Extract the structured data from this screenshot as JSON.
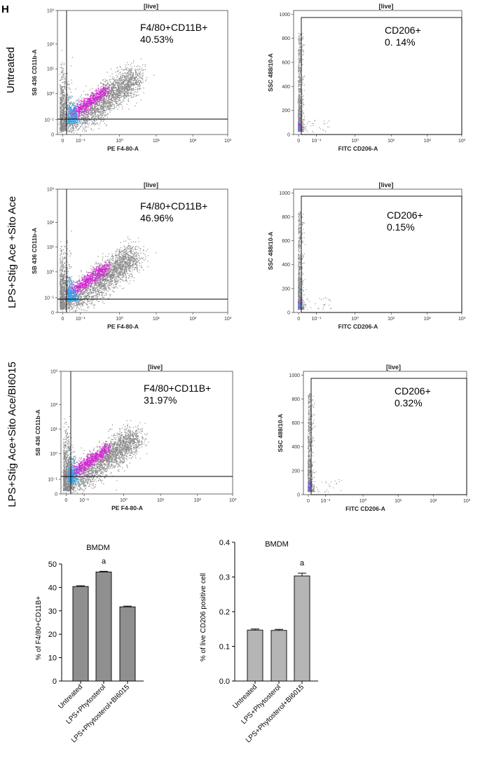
{
  "panel_label": "H",
  "row_labels": [
    "Untreated",
    "LPS+Stig Ace +Sito Ace",
    "LPS+Stig Ace+Sito Ace/BI6015"
  ],
  "flow_plots": [
    {
      "gate_title": "[live]",
      "ylabel": "SB 436 CD11b-A",
      "xlabel": "PE F4-80-A",
      "population": "F4/80+CD11B+",
      "percent": "40.53%"
    },
    {
      "gate_title": "[live]",
      "ylabel": "SSC 488/10-A",
      "xlabel": "FITC CD206-A",
      "population": "CD206+",
      "percent": "0. 14%"
    },
    {
      "gate_title": "[live]",
      "ylabel": "SB 436 CD11b-A",
      "xlabel": "PE F4-80-A",
      "population": "F4/80+CD11B+",
      "percent": "46.96%"
    },
    {
      "gate_title": "[live]",
      "ylabel": "SSC 488/10-A",
      "xlabel": "FITC CD206-A",
      "population": "CD206+",
      "percent": "0.15%"
    },
    {
      "gate_title": "[live]",
      "ylabel": "SB 436 CD11b-A",
      "xlabel": "PE F4-80-A",
      "population": "F4/80+CD11B+",
      "percent": "31.97%"
    },
    {
      "gate_title": "[live]",
      "ylabel": "SSC 488/10-A",
      "xlabel": "FITC CD206-A",
      "population": "CD206+",
      "percent": "0.32%"
    }
  ],
  "log_ticks": [
    "0",
    "10⁻¹",
    "10⁰",
    "10¹",
    "10²",
    "10³"
  ],
  "ssc_ticks": [
    "0",
    "200",
    "400",
    "600",
    "800",
    "1000"
  ],
  "colors": {
    "events": "#8a8a8a",
    "dense": "#d61fd6",
    "core": "#2fa6e8",
    "bar1": "#8f8f8f",
    "bar2": "#b5b5b5"
  },
  "chart_data": [
    {
      "type": "bar",
      "title": "BMDM",
      "ylabel": "% of F4/80+CD11B+",
      "categories": [
        "Untreated",
        "LPS+Phytosterol",
        "LPS+Phytosterol+BI6015"
      ],
      "values": [
        40.4,
        46.6,
        31.7
      ],
      "errors": [
        0.3,
        0.3,
        0.3
      ],
      "annotations": [
        "",
        "a",
        ""
      ],
      "ylim": [
        0,
        50
      ],
      "yticks": [
        0,
        10,
        20,
        30,
        40,
        50
      ]
    },
    {
      "type": "bar",
      "title": "BMDM",
      "ylabel": "% of  live CD206 positive cell",
      "categories": [
        "Untreated",
        "LPS+Phytosterol",
        "LPS+Phytosterol+BI6015"
      ],
      "values": [
        0.147,
        0.146,
        0.303
      ],
      "errors": [
        0.003,
        0.003,
        0.008
      ],
      "annotations": [
        "",
        "",
        "a"
      ],
      "ylim": [
        0,
        0.4
      ],
      "yticks": [
        "0.0",
        "0.1",
        "0.2",
        "0.3",
        "0.4"
      ]
    }
  ]
}
